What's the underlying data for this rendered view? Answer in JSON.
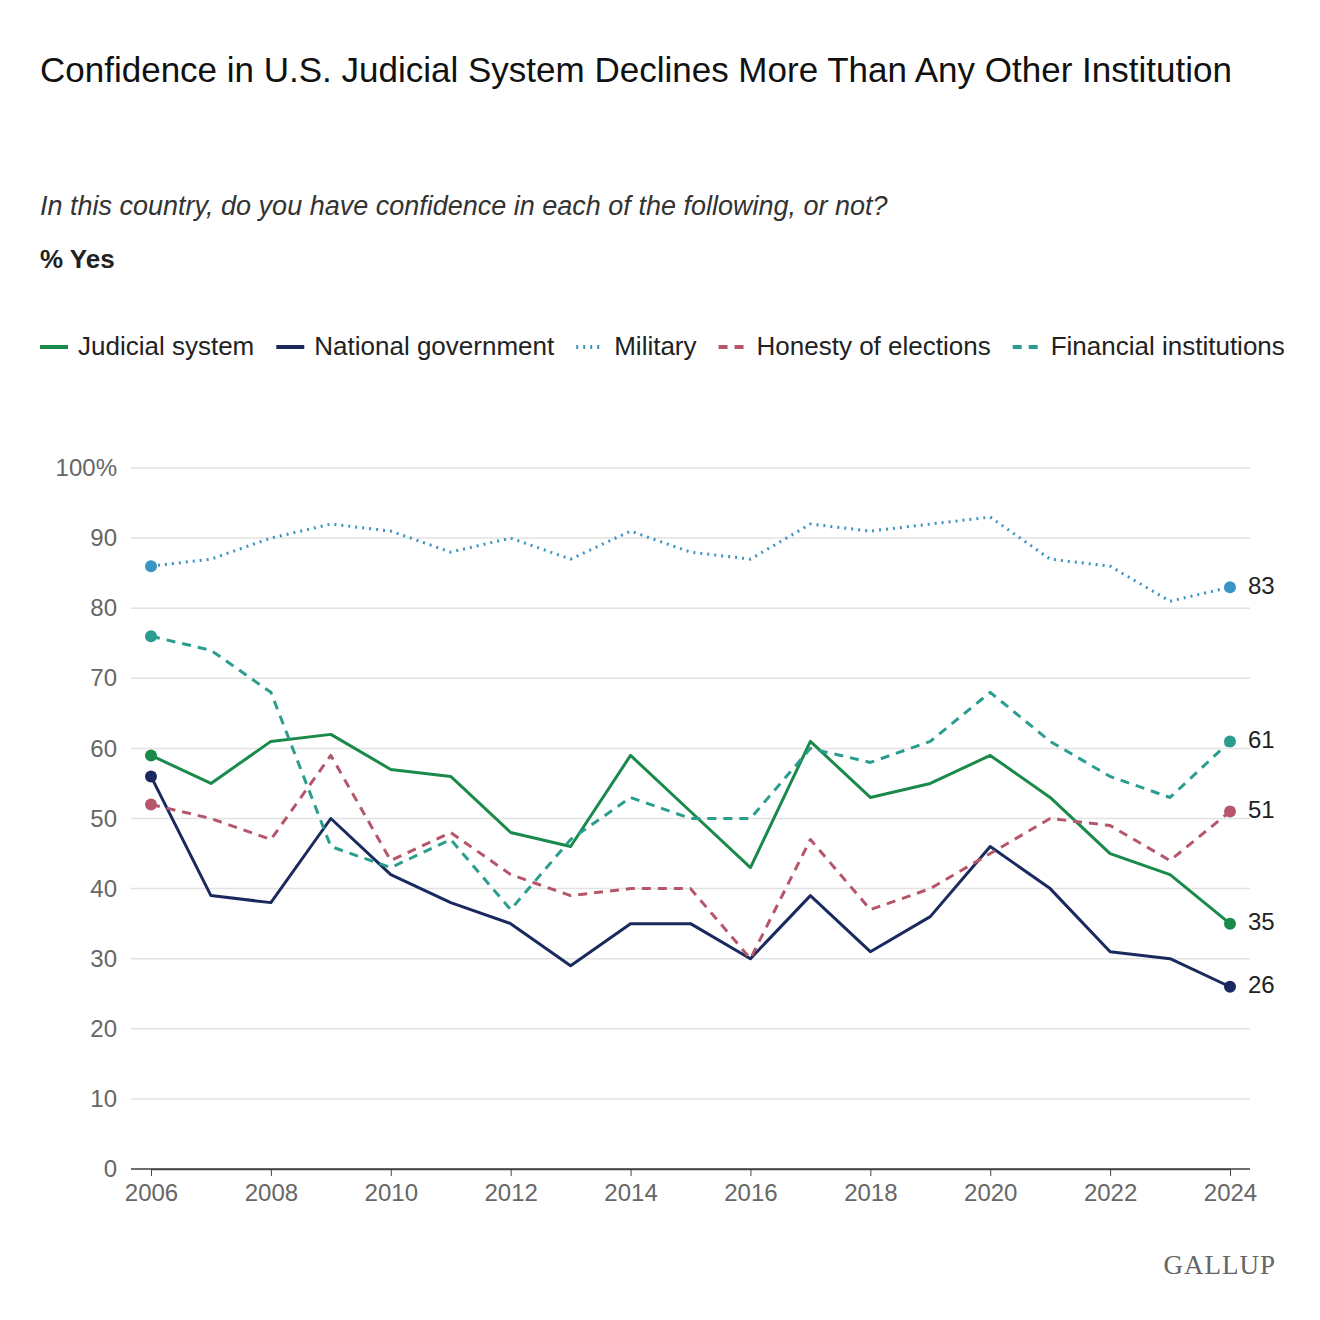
{
  "chart_data": {
    "type": "line",
    "title": "Confidence in U.S. Judicial System Declines More Than Any Other Institution",
    "subtitle": "In this country, do you have confidence in each of the following, or not?",
    "y_label": "% Yes",
    "source": "GALLUP",
    "x": [
      2006,
      2007,
      2008,
      2009,
      2010,
      2011,
      2012,
      2013,
      2014,
      2015,
      2016,
      2017,
      2018,
      2019,
      2020,
      2021,
      2022,
      2023,
      2024
    ],
    "series": [
      {
        "name": "Judicial system",
        "color": "#1a8a4a",
        "line_style": "solid",
        "values": [
          59,
          55,
          61,
          62,
          57,
          56,
          48,
          46,
          59,
          51,
          43,
          61,
          53,
          55,
          59,
          53,
          45,
          42,
          35
        ]
      },
      {
        "name": "National government",
        "color": "#1b2a5e",
        "line_style": "solid",
        "values": [
          56,
          39,
          38,
          50,
          42,
          38,
          35,
          29,
          35,
          35,
          30,
          39,
          31,
          36,
          46,
          40,
          31,
          30,
          26
        ]
      },
      {
        "name": "Military",
        "color": "#3a94c4",
        "line_style": "dotted",
        "values": [
          86,
          87,
          90,
          92,
          91,
          88,
          90,
          87,
          91,
          88,
          87,
          92,
          91,
          92,
          93,
          87,
          86,
          81,
          83
        ]
      },
      {
        "name": "Honesty of elections",
        "color": "#b5566a",
        "line_style": "dashed",
        "values": [
          52,
          50,
          47,
          59,
          44,
          48,
          42,
          39,
          40,
          40,
          30,
          47,
          37,
          40,
          45,
          50,
          49,
          44,
          51
        ]
      },
      {
        "name": "Financial institutions",
        "color": "#2a9d8f",
        "line_style": "dashed",
        "values": [
          76,
          74,
          68,
          46,
          43,
          47,
          37,
          47,
          53,
          50,
          50,
          60,
          58,
          61,
          68,
          61,
          56,
          53,
          61
        ]
      }
    ],
    "xlim": [
      2006,
      2024
    ],
    "xticks": [
      2006,
      2008,
      2010,
      2012,
      2014,
      2016,
      2018,
      2020,
      2022,
      2024
    ],
    "ylim": [
      0,
      100
    ],
    "yticks": [
      0,
      10,
      20,
      30,
      40,
      50,
      60,
      70,
      80,
      90,
      {
        "value": 100,
        "label": "100%"
      }
    ],
    "grid": true
  }
}
